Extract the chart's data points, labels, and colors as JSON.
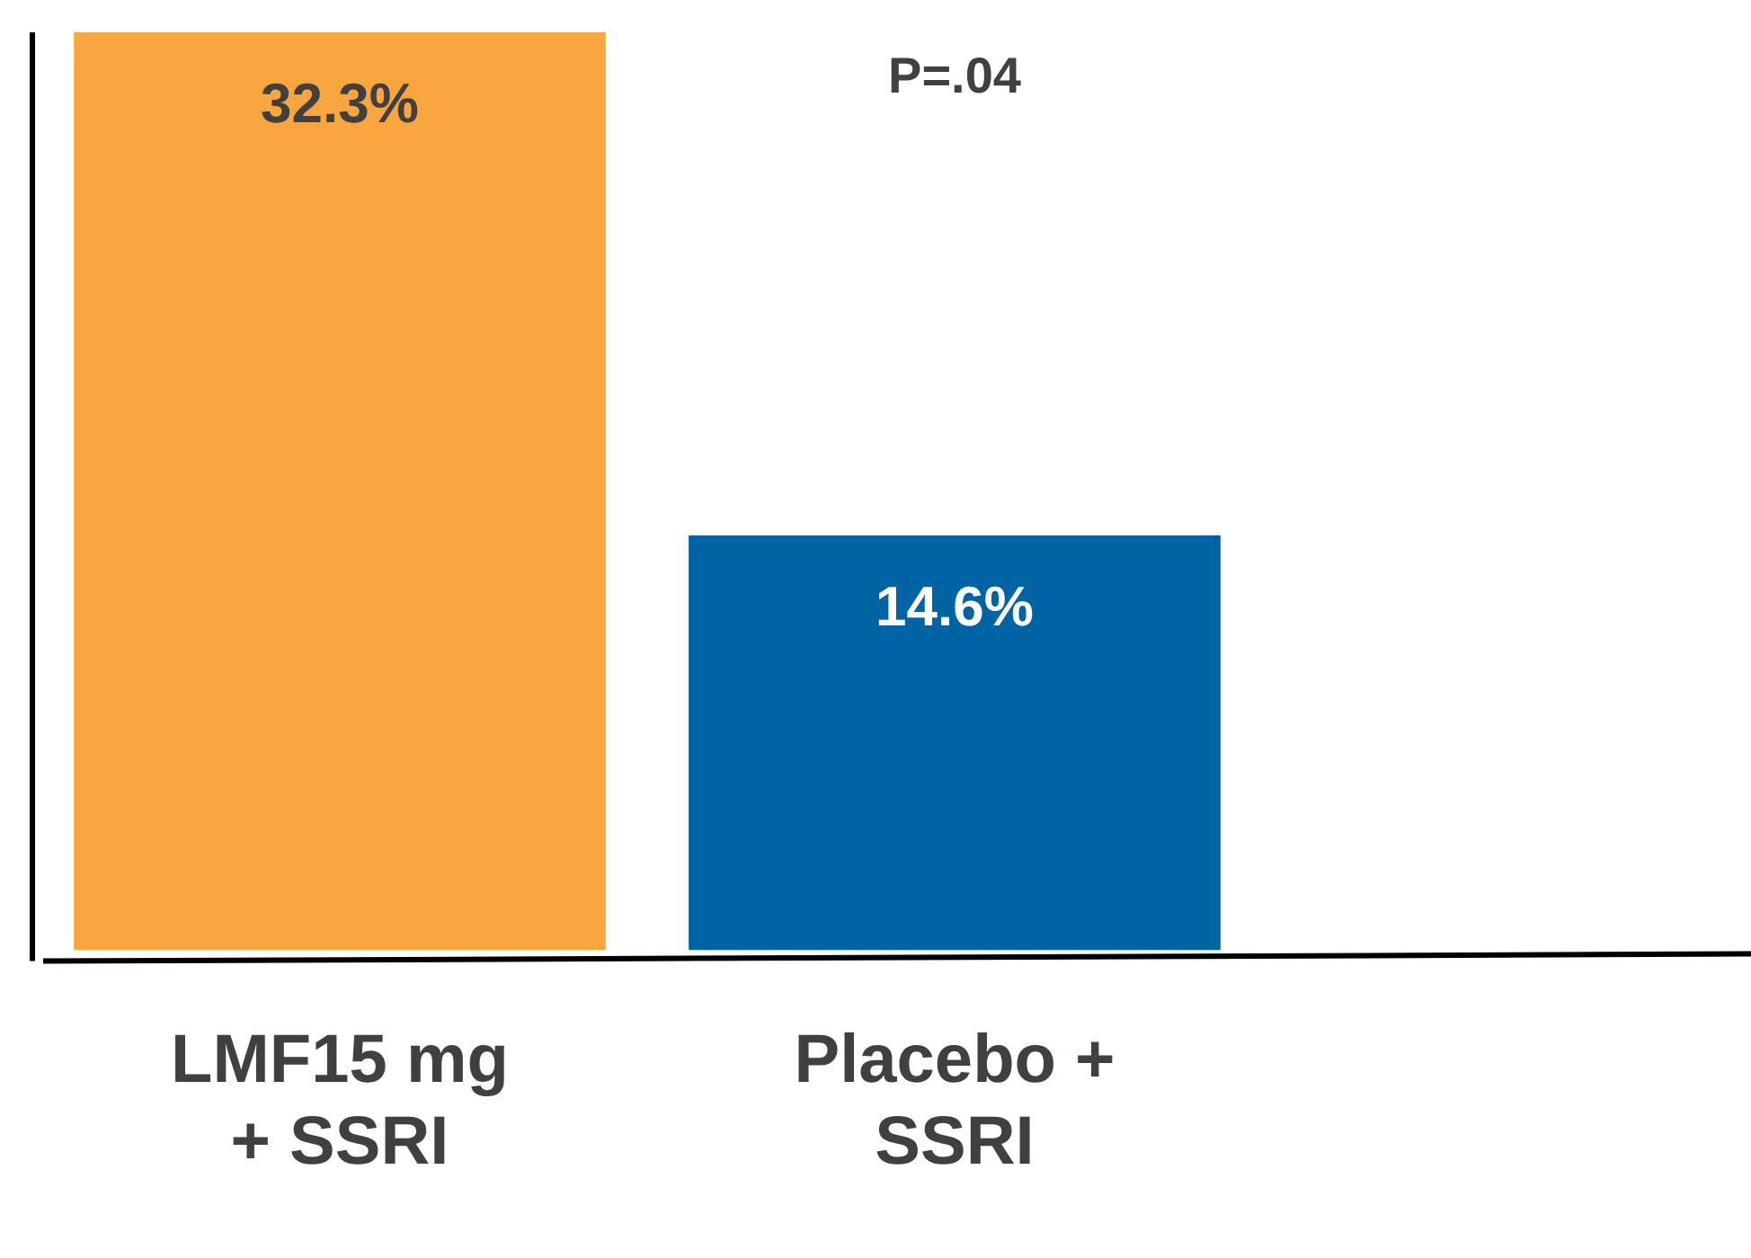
{
  "chart_data": {
    "type": "bar",
    "categories": [
      "LMF15 mg + SSRI",
      "Placebo + SSRI"
    ],
    "values": [
      32.3,
      14.6
    ],
    "colors": [
      "#f9a640",
      "#0063a3"
    ],
    "value_labels": [
      "32.3%",
      "14.6%"
    ],
    "tick_labels": "x",
    "grid": false,
    "legend": false,
    "annotations": [
      "P=.04"
    ]
  }
}
